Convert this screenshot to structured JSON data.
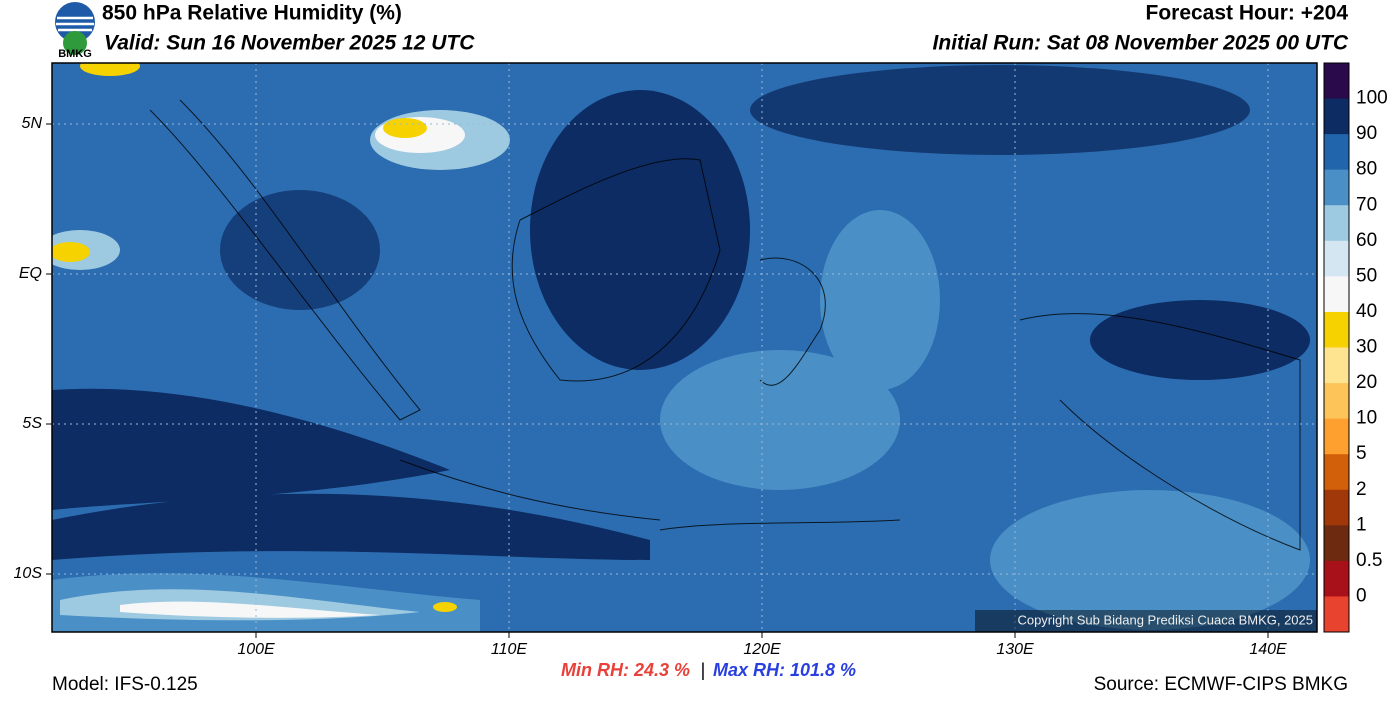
{
  "header": {
    "title": "850 hPa Relative Humidity (%)",
    "valid": "Valid: Sun 16 November 2025 12 UTC",
    "forecast_hour": "Forecast Hour: +204",
    "initial_run": "Initial Run: Sat 08 November 2025 00 UTC",
    "logo": "BMKG"
  },
  "map": {
    "lat_labels": [
      "5N",
      "EQ",
      "5S",
      "10S"
    ],
    "lon_labels": [
      "100E",
      "110E",
      "120E",
      "130E",
      "140E"
    ],
    "copyright": "Copyright Sub Bidang Prediksi Cuaca BMKG, 2025"
  },
  "colorbar": {
    "labels": [
      100,
      90,
      80,
      70,
      60,
      50,
      40,
      30,
      20,
      10,
      5,
      2,
      1,
      0.5,
      0
    ],
    "colors": [
      "#2a0a4a",
      "#0c2c63",
      "#2166ac",
      "#4a90c6",
      "#9ecae1",
      "#d4e6f2",
      "#f7f7f7",
      "#f5d200",
      "#fee391",
      "#fdc45a",
      "#fda030",
      "#d2600a",
      "#a0380a",
      "#6e2a10",
      "#a8101a",
      "#e8432e"
    ]
  },
  "footer": {
    "model": "Model: IFS-0.125",
    "min_rh": "Min RH:  24.3 %",
    "separator": "|",
    "max_rh": "Max RH: 101.8 %",
    "source": "Source: ECMWF-CIPS BMKG"
  }
}
